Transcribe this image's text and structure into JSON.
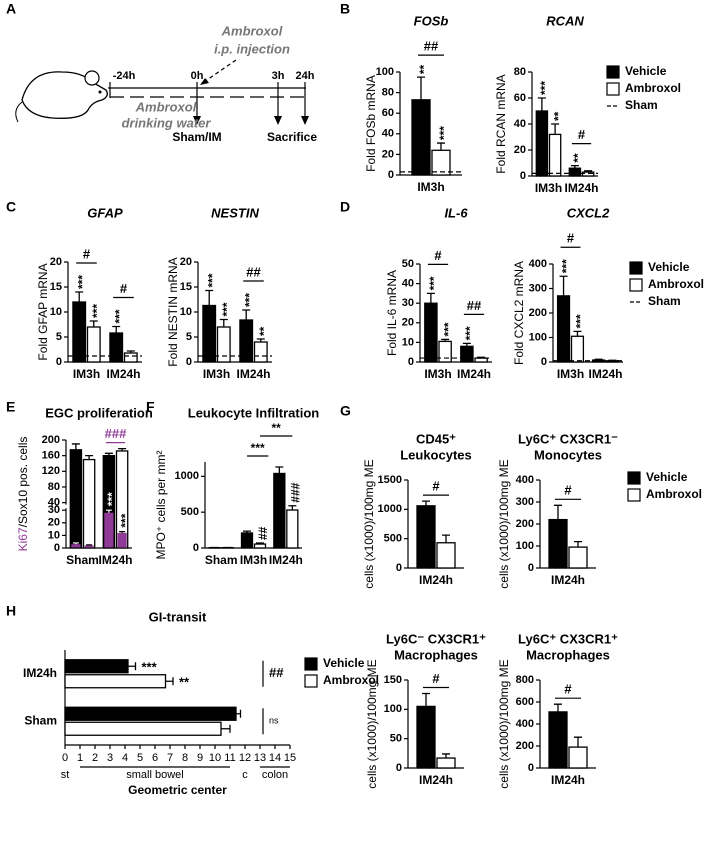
{
  "panel_labels": [
    "A",
    "B",
    "C",
    "D",
    "E",
    "F",
    "G",
    "H"
  ],
  "diagram": {
    "times": [
      "-24h",
      "0h",
      "3h",
      "24h"
    ],
    "injection": [
      "Ambroxol",
      "i.p. injection"
    ],
    "water": [
      "Ambroxol",
      "drinking water"
    ],
    "events": [
      "Sham/IM",
      "Sacrifice"
    ]
  },
  "chart_data": [
    {
      "type": "bar",
      "title": [
        "FOSb"
      ],
      "italic_title": true,
      "ylabel": [
        "Fold FOSb mRNA"
      ],
      "categories": [
        "IM3h"
      ],
      "series": [
        {
          "color": "#000000",
          "values": [
            73
          ],
          "errors": [
            22
          ],
          "stars": [
            "**"
          ]
        },
        {
          "color": "#ffffff",
          "values": [
            24
          ],
          "errors": [
            7
          ],
          "stars": [
            "***"
          ]
        }
      ],
      "brackets": [
        "##"
      ],
      "reference": {
        "value": 3
      },
      "ylim": [
        0,
        100
      ],
      "yticks": [
        0,
        20,
        40,
        60,
        80,
        100
      ]
    },
    {
      "type": "bar",
      "title": [
        "RCAN"
      ],
      "italic_title": true,
      "ylabel": [
        "Fold RCAN mRNA"
      ],
      "categories": [
        "IM3h",
        "IM24h"
      ],
      "series": [
        {
          "name": "Vehicle",
          "color": "#000000",
          "values": [
            50,
            6
          ],
          "errors": [
            10,
            2
          ],
          "stars": [
            "***",
            "**"
          ]
        },
        {
          "name": "Ambroxol",
          "color": "#ffffff",
          "values": [
            32,
            3
          ],
          "errors": [
            8,
            1
          ],
          "stars": [
            "**",
            null
          ]
        }
      ],
      "brackets": [
        null,
        "#"
      ],
      "reference": {
        "name": "Sham",
        "value": 2
      },
      "legend": true,
      "ylim": [
        0,
        80
      ],
      "yticks": [
        0,
        20,
        40,
        60,
        80
      ]
    },
    {
      "type": "bar",
      "title": [
        "GFAP"
      ],
      "italic_title": true,
      "ylabel": [
        "Fold GFAP mRNA"
      ],
      "categories": [
        "IM3h",
        "IM24h"
      ],
      "series": [
        {
          "color": "#000000",
          "values": [
            12,
            5.8
          ],
          "errors": [
            2,
            1.3
          ],
          "stars": [
            "***",
            "***"
          ]
        },
        {
          "color": "#ffffff",
          "values": [
            7,
            1.8
          ],
          "errors": [
            1.2,
            0.4
          ],
          "stars": [
            "***",
            null
          ]
        }
      ],
      "brackets": [
        "#",
        "#"
      ],
      "reference": {
        "value": 1.2
      },
      "ylim": [
        0,
        20
      ],
      "yticks": [
        0,
        5,
        10,
        15,
        20
      ]
    },
    {
      "type": "bar",
      "title": [
        "NESTIN"
      ],
      "italic_title": true,
      "ylabel": [
        "Fold NESTIN mRNA"
      ],
      "categories": [
        "IM3h",
        "IM24h"
      ],
      "series": [
        {
          "color": "#000000",
          "values": [
            11.3,
            8.4
          ],
          "errors": [
            3,
            2
          ],
          "stars": [
            "***",
            "***"
          ]
        },
        {
          "color": "#ffffff",
          "values": [
            7,
            4
          ],
          "errors": [
            1.5,
            0.6
          ],
          "stars": [
            "***",
            "**"
          ]
        }
      ],
      "brackets": [
        null,
        "##"
      ],
      "reference": {
        "value": 1.2
      },
      "ylim": [
        0,
        20
      ],
      "yticks": [
        0,
        5,
        10,
        15,
        20
      ]
    },
    {
      "type": "bar",
      "title": [
        "IL-6"
      ],
      "italic_title": true,
      "ylabel": [
        "Fold IL-6 mRNA"
      ],
      "categories": [
        "IM3h",
        "IM24h"
      ],
      "series": [
        {
          "color": "#000000",
          "values": [
            30,
            8
          ],
          "errors": [
            5,
            1.5
          ],
          "stars": [
            "***",
            "***"
          ]
        },
        {
          "color": "#ffffff",
          "values": [
            10.5,
            2
          ],
          "errors": [
            1,
            0.4
          ],
          "stars": [
            "***",
            null
          ]
        }
      ],
      "brackets": [
        "#",
        "##"
      ],
      "reference": {
        "value": 2
      },
      "ylim": [
        0,
        50
      ],
      "yticks": [
        0,
        10,
        20,
        30,
        40,
        50
      ]
    },
    {
      "type": "bar",
      "title": [
        "CXCL2"
      ],
      "italic_title": true,
      "ylabel": [
        "Fold CXCL2 mRNA"
      ],
      "categories": [
        "IM3h",
        "IM24h"
      ],
      "series": [
        {
          "name": "Vehicle",
          "color": "#000000",
          "values": [
            270,
            8
          ],
          "errors": [
            80,
            3
          ],
          "stars": [
            "***",
            null
          ]
        },
        {
          "name": "Ambroxol",
          "color": "#ffffff",
          "values": [
            105,
            5
          ],
          "errors": [
            20,
            2
          ],
          "stars": [
            "***",
            null
          ]
        }
      ],
      "brackets": [
        "#",
        null
      ],
      "reference": {
        "name": "Sham",
        "value": 5
      },
      "legend": true,
      "ylim": [
        0,
        400
      ],
      "yticks": [
        0,
        100,
        200,
        300,
        400
      ]
    },
    {
      "type": "bar",
      "title": [
        "EGC proliferation"
      ],
      "ylabel": [
        "Ki67",
        "/Sox10 pos. cells"
      ],
      "ylabel_highlight_color": "#8e3a96",
      "categories": [
        "Sham",
        "IM24h"
      ],
      "series": [
        {
          "color": "#000000",
          "values": [
            175,
            160
          ],
          "errors": [
            15,
            6
          ],
          "inner_values": [
            3,
            28
          ],
          "inner_errors": [
            1,
            2
          ],
          "stars": [
            null,
            "***"
          ]
        },
        {
          "color": "#ffffff",
          "values": [
            150,
            172
          ],
          "errors": [
            10,
            6
          ],
          "inner_values": [
            2,
            12
          ],
          "inner_errors": [
            0.5,
            1
          ],
          "stars": [
            null,
            "***"
          ]
        }
      ],
      "inner_color": "#8e3a96",
      "brackets": [
        null,
        "###"
      ],
      "bracket_color": "#8e3a96",
      "ylim": [
        0,
        200
      ],
      "ybreak": [
        30,
        40
      ],
      "yticks": [
        0,
        10,
        20,
        30,
        40,
        80,
        120,
        160,
        200
      ]
    },
    {
      "type": "bar",
      "title": [
        "Leukocyte Infiltration"
      ],
      "ylabel": [
        "MPO⁺ cells per mm²"
      ],
      "categories": [
        "Sham",
        "IM3h",
        "IM24h"
      ],
      "series": [
        {
          "color": "#000000",
          "values": [
            5,
            210,
            1040
          ],
          "errors": [
            2,
            25,
            90
          ],
          "stars": [
            null,
            null,
            null
          ]
        },
        {
          "color": "#ffffff",
          "values": [
            5,
            55,
            530
          ],
          "errors": [
            2,
            15,
            60
          ],
          "stars": [
            null,
            "##",
            "###"
          ]
        }
      ],
      "top_brackets": [
        "***",
        "**"
      ],
      "ylim": [
        0,
        1200
      ],
      "yticks": [
        0,
        500,
        1000
      ]
    },
    {
      "type": "bar",
      "title": [
        "CD45⁺",
        "Leukocytes"
      ],
      "ylabel": [
        "cells (x1000)/100mg ME"
      ],
      "categories": [
        "IM24h"
      ],
      "series": [
        {
          "color": "#000000",
          "values": [
            1060
          ],
          "errors": [
            80
          ]
        },
        {
          "color": "#ffffff",
          "values": [
            430
          ],
          "errors": [
            130
          ]
        }
      ],
      "brackets": [
        "#"
      ],
      "ylim": [
        0,
        1500
      ],
      "yticks": [
        0,
        500,
        1000,
        1500
      ]
    },
    {
      "type": "bar",
      "title": [
        "Ly6C⁺ CX3CR1⁻",
        "Monocytes"
      ],
      "ylabel": [
        "cells (x1000)/100mg ME"
      ],
      "categories": [
        "IM24h"
      ],
      "series": [
        {
          "name": "Vehicle",
          "color": "#000000",
          "values": [
            220
          ],
          "errors": [
            65
          ]
        },
        {
          "name": "Ambroxol",
          "color": "#ffffff",
          "values": [
            95
          ],
          "errors": [
            25
          ]
        }
      ],
      "brackets": [
        "#"
      ],
      "legend": true,
      "ylim": [
        0,
        400
      ],
      "yticks": [
        0,
        100,
        200,
        300,
        400
      ]
    },
    {
      "type": "bar",
      "title": [
        "Ly6C⁻ CX3CR1⁺",
        "Macrophages"
      ],
      "ylabel": [
        "cells (x1000)/100mg ME"
      ],
      "categories": [
        "IM24h"
      ],
      "series": [
        {
          "color": "#000000",
          "values": [
            105
          ],
          "errors": [
            22
          ]
        },
        {
          "color": "#ffffff",
          "values": [
            17
          ],
          "errors": [
            7
          ]
        }
      ],
      "brackets": [
        "#"
      ],
      "ylim": [
        0,
        150
      ],
      "yticks": [
        0,
        50,
        100,
        150
      ]
    },
    {
      "type": "bar",
      "title": [
        "Ly6C⁺ CX3CR1⁺",
        "Macrophages"
      ],
      "ylabel": [
        "cells (x1000)/100mg ME"
      ],
      "categories": [
        "IM24h"
      ],
      "series": [
        {
          "color": "#000000",
          "values": [
            510
          ],
          "errors": [
            70
          ]
        },
        {
          "color": "#ffffff",
          "values": [
            190
          ],
          "errors": [
            90
          ]
        }
      ],
      "brackets": [
        "#"
      ],
      "ylim": [
        0,
        800
      ],
      "yticks": [
        0,
        200,
        400,
        600,
        800
      ]
    },
    {
      "type": "hbar",
      "title": [
        "GI-transit"
      ],
      "categories": [
        "IM24h",
        "Sham"
      ],
      "series": [
        {
          "name": "Vehicle",
          "color": "#000000",
          "values": [
            4.2,
            11.4
          ],
          "errors": [
            0.5,
            0.3
          ],
          "stars": [
            "***",
            null
          ]
        },
        {
          "name": "Ambroxol",
          "color": "#ffffff",
          "values": [
            6.7,
            10.4
          ],
          "errors": [
            0.5,
            0.6
          ],
          "stars": [
            "**",
            null
          ]
        }
      ],
      "side_brackets": [
        "##",
        "ns"
      ],
      "legend": true,
      "xlabel": "Geometric center",
      "regions": [
        "st",
        "small bowel",
        "c",
        "colon"
      ],
      "xlim": [
        0,
        15
      ],
      "xticks": [
        0,
        1,
        2,
        3,
        4,
        5,
        6,
        7,
        8,
        9,
        10,
        11,
        12,
        13,
        14,
        15
      ]
    }
  ]
}
